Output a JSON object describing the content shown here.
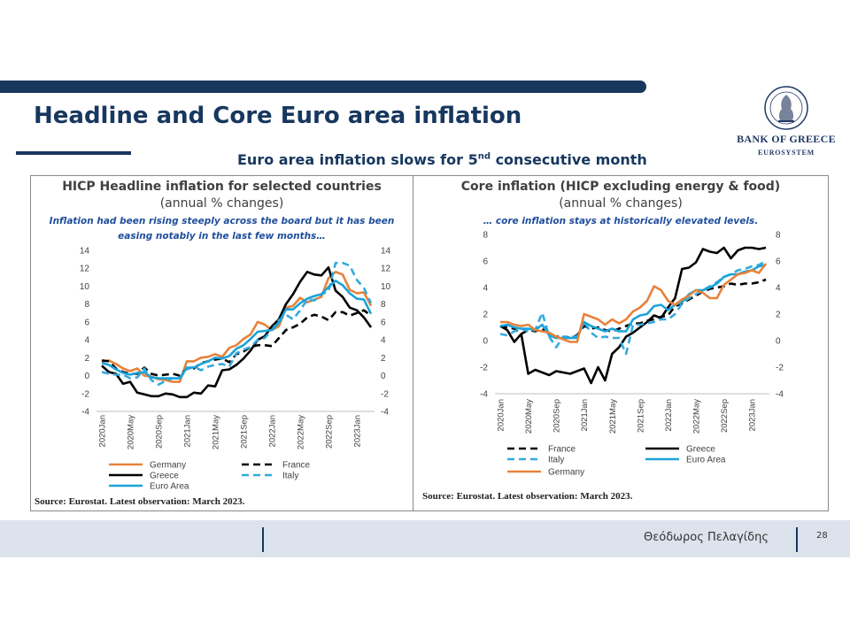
{
  "slide": {
    "title": "Headline and Core Euro area inflation",
    "subtitle_main": "Euro area inflation slows for 5",
    "subtitle_sup": "nd",
    "subtitle_end": " consecutive month",
    "logo_name": "BANK OF GREECE",
    "logo_sub": "EUROSYSTEM",
    "author": "Θεόδωρος Πελαγίδης",
    "page_number": "28"
  },
  "colors": {
    "brand": "#17375e",
    "Germany": "#e8823a",
    "France": "#000000",
    "Greece": "#000000",
    "Italy": "#33aadd",
    "Euro Area": "#1ba3d8"
  },
  "chart_data": [
    {
      "type": "line",
      "title": "HICP Headline inflation for selected countries",
      "subtitle": "(annual % changes)",
      "annotation": "Inflation had been rising steeply across the board but it has been easing notably in the last few months…",
      "source": "Source: Eurostat. Latest observation: March 2023.",
      "ylim": [
        -4,
        14
      ],
      "yticks": [
        "-4",
        "-2",
        "0",
        "2",
        "4",
        "6",
        "8",
        "10",
        "12",
        "14"
      ],
      "xticks": [
        "2020Jan",
        "2020May",
        "2020Sep",
        "2021Jan",
        "2021May",
        "2021Sep",
        "2022Jan",
        "2022May",
        "2022Sep",
        "2023Jan"
      ],
      "x_start": "2020Jan",
      "legend_position": "bottom",
      "grid": false,
      "series": [
        {
          "name": "Germany",
          "style": "solid",
          "values": [
            1.6,
            1.7,
            1.3,
            0.8,
            0.5,
            0.8,
            0.0,
            -0.1,
            -0.4,
            -0.5,
            -0.7,
            -0.7,
            1.6,
            1.6,
            2.0,
            2.1,
            2.4,
            2.1,
            3.1,
            3.4,
            4.1,
            4.6,
            6.0,
            5.7,
            5.1,
            5.5,
            7.6,
            7.8,
            8.7,
            8.2,
            8.5,
            8.8,
            10.9,
            11.6,
            11.3,
            9.6,
            9.2,
            9.3,
            7.8
          ]
        },
        {
          "name": "France",
          "style": "dashed",
          "values": [
            1.7,
            1.6,
            0.8,
            0.4,
            0.2,
            0.2,
            0.9,
            0.2,
            0.0,
            0.1,
            0.2,
            0.0,
            0.8,
            0.8,
            1.4,
            1.6,
            1.8,
            1.9,
            1.5,
            2.4,
            2.7,
            3.2,
            3.4,
            3.4,
            3.3,
            4.2,
            5.1,
            5.4,
            5.8,
            6.5,
            6.8,
            6.6,
            6.2,
            7.1,
            7.1,
            6.7,
            7.0,
            7.3,
            6.7
          ]
        },
        {
          "name": "Greece",
          "style": "solid",
          "values": [
            1.1,
            0.4,
            0.2,
            -0.9,
            -0.7,
            -1.9,
            -2.1,
            -2.3,
            -2.3,
            -2.0,
            -2.1,
            -2.4,
            -2.4,
            -1.9,
            -2.0,
            -1.1,
            -1.2,
            0.6,
            0.7,
            1.2,
            1.9,
            2.8,
            4.0,
            4.4,
            5.5,
            6.3,
            8.0,
            9.1,
            10.5,
            11.6,
            11.3,
            11.2,
            12.1,
            9.5,
            8.8,
            7.6,
            7.3,
            6.5,
            5.4
          ]
        },
        {
          "name": "Italy",
          "style": "dashed",
          "values": [
            0.4,
            0.2,
            0.1,
            0.1,
            -0.3,
            -0.2,
            0.8,
            -0.5,
            -1.0,
            -0.6,
            -0.3,
            -0.3,
            0.7,
            1.0,
            0.6,
            1.0,
            1.2,
            1.3,
            1.0,
            2.5,
            2.9,
            3.2,
            4.0,
            4.2,
            5.1,
            6.2,
            6.8,
            6.3,
            7.3,
            8.5,
            8.4,
            9.1,
            9.4,
            12.6,
            12.6,
            12.3,
            10.7,
            9.8,
            8.1
          ]
        },
        {
          "name": "Euro Area",
          "style": "solid",
          "values": [
            1.4,
            1.2,
            0.7,
            0.3,
            0.1,
            0.3,
            0.4,
            -0.2,
            -0.3,
            -0.3,
            -0.3,
            -0.3,
            0.9,
            0.9,
            1.3,
            1.6,
            2.0,
            1.9,
            2.2,
            3.0,
            3.4,
            4.1,
            4.9,
            5.0,
            5.1,
            5.9,
            7.4,
            7.4,
            8.1,
            8.6,
            8.9,
            9.1,
            9.9,
            10.6,
            10.1,
            9.2,
            8.6,
            8.5,
            6.9
          ]
        }
      ]
    },
    {
      "type": "line",
      "title": "Core inflation (HICP excluding energy & food)",
      "subtitle": "(annual % changes)",
      "annotation": "… core inflation stays at historically elevated levels.",
      "source": "Source: Eurostat. Latest observation: March 2023.",
      "ylim": [
        -4,
        8
      ],
      "yticks": [
        "-4",
        "-2",
        "0",
        "2",
        "4",
        "6",
        "8"
      ],
      "xticks": [
        "2020Jan",
        "2020May",
        "2020Sep",
        "2021Jan",
        "2021May",
        "2021Sep",
        "2022Jan",
        "2022May",
        "2022Sep",
        "2023Jan"
      ],
      "x_start": "2020Jan",
      "legend_position": "bottom",
      "grid": false,
      "series": [
        {
          "name": "France",
          "style": "dashed",
          "values": [
            1.1,
            1.0,
            0.9,
            0.5,
            0.8,
            0.7,
            0.9,
            0.5,
            0.3,
            0.3,
            0.2,
            0.4,
            1.1,
            0.9,
            1.0,
            0.8,
            0.7,
            0.9,
            1.1,
            1.3,
            1.3,
            1.5,
            1.6,
            1.8,
            1.9,
            2.6,
            2.8,
            3.1,
            3.4,
            3.7,
            3.9,
            4.0,
            4.1,
            4.3,
            4.2,
            4.3,
            4.3,
            4.4,
            4.6
          ]
        },
        {
          "name": "Greece",
          "style": "solid",
          "values": [
            1.1,
            0.8,
            -0.1,
            0.5,
            -2.5,
            -2.2,
            -2.4,
            -2.6,
            -2.3,
            -2.4,
            -2.5,
            -2.3,
            -2.1,
            -3.2,
            -2.0,
            -3.0,
            -1.0,
            -0.5,
            0.3,
            0.6,
            1.0,
            1.4,
            1.9,
            1.7,
            2.5,
            3.2,
            5.4,
            5.5,
            5.9,
            6.9,
            6.7,
            6.6,
            7.0,
            6.2,
            6.8,
            7.0,
            7.0,
            6.9,
            7.0
          ]
        },
        {
          "name": "Italy",
          "style": "dashed",
          "values": [
            0.5,
            0.4,
            0.7,
            0.9,
            0.7,
            0.8,
            2.1,
            0.3,
            -0.5,
            0.3,
            0.3,
            0.3,
            1.4,
            0.6,
            0.2,
            0.3,
            0.2,
            0.2,
            -1.0,
            1.2,
            1.2,
            1.3,
            1.4,
            1.6,
            1.6,
            2.0,
            2.8,
            3.2,
            3.5,
            3.8,
            4.1,
            4.4,
            4.8,
            5.0,
            5.3,
            5.4,
            5.6,
            5.7,
            6.0
          ]
        },
        {
          "name": "Euro Area",
          "style": "solid",
          "values": [
            1.1,
            1.2,
            1.0,
            0.9,
            0.9,
            0.8,
            1.2,
            0.4,
            0.2,
            0.2,
            0.2,
            0.2,
            1.4,
            1.1,
            0.9,
            0.7,
            0.9,
            0.7,
            0.7,
            1.6,
            1.9,
            2.0,
            2.6,
            2.7,
            2.3,
            2.7,
            2.9,
            3.5,
            3.8,
            3.8,
            4.0,
            4.3,
            4.8,
            5.0,
            5.0,
            5.2,
            5.3,
            5.6,
            5.7
          ]
        },
        {
          "name": "Germany",
          "style": "solid",
          "values": [
            1.4,
            1.4,
            1.2,
            1.1,
            1.2,
            0.8,
            0.7,
            0.6,
            0.3,
            0.1,
            -0.1,
            -0.1,
            2.0,
            1.8,
            1.6,
            1.2,
            1.6,
            1.3,
            1.6,
            2.2,
            2.5,
            3.0,
            4.1,
            3.8,
            3.0,
            2.7,
            3.1,
            3.4,
            3.8,
            3.6,
            3.2,
            3.2,
            4.2,
            4.6,
            5.0,
            5.1,
            5.3,
            5.1,
            5.8
          ]
        }
      ]
    }
  ]
}
